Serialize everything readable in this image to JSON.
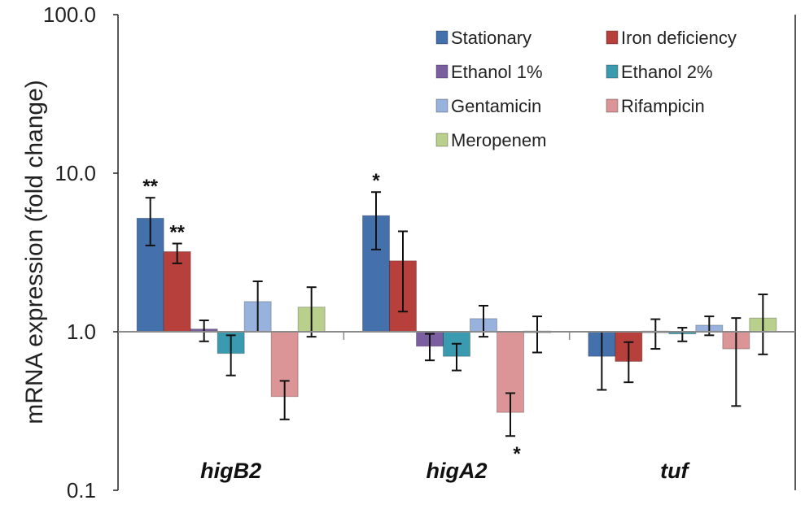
{
  "chart_data": {
    "type": "bar",
    "ylabel": "mRNA expression (fold change)",
    "yscale": "log",
    "ylim": [
      0.1,
      100
    ],
    "yticks": [
      "0.1",
      "1.0",
      "10.0",
      "100.0"
    ],
    "categories": [
      "higB2",
      "higA2",
      "tuf"
    ],
    "legend_position": "top-right",
    "series": [
      {
        "name": "Stationary",
        "color": "#4470ab",
        "values": [
          5.2,
          5.4,
          0.7
        ],
        "err_low": [
          3.5,
          3.3,
          0.43
        ],
        "err_high": [
          7.0,
          7.6,
          1.0
        ]
      },
      {
        "name": "Iron deficiency",
        "color": "#b8403c",
        "values": [
          3.2,
          2.8,
          0.65
        ],
        "err_low": [
          2.7,
          1.34,
          0.48
        ],
        "err_high": [
          3.6,
          4.3,
          0.86
        ]
      },
      {
        "name": "Ethanol 1%",
        "color": "#7b5ea0",
        "values": [
          1.04,
          0.81,
          1.01
        ],
        "err_low": [
          0.87,
          0.66,
          0.78
        ],
        "err_high": [
          1.18,
          0.97,
          1.2
        ]
      },
      {
        "name": "Ethanol 2%",
        "color": "#3a9bb0",
        "values": [
          0.73,
          0.7,
          0.97
        ],
        "err_low": [
          0.53,
          0.57,
          0.87
        ],
        "err_high": [
          0.95,
          0.84,
          1.06
        ]
      },
      {
        "name": "Gentamicin",
        "color": "#97b3dd",
        "values": [
          1.55,
          1.21,
          1.1
        ],
        "err_low": [
          1.0,
          0.93,
          0.95
        ],
        "err_high": [
          2.08,
          1.46,
          1.25
        ]
      },
      {
        "name": "Rifampicin",
        "color": "#db9596",
        "values": [
          0.39,
          0.31,
          0.78
        ],
        "err_low": [
          0.28,
          0.22,
          0.34
        ],
        "err_high": [
          0.49,
          0.41,
          1.22
        ]
      },
      {
        "name": "Meropenem",
        "color": "#b9d08d",
        "values": [
          1.43,
          1.01,
          1.22
        ],
        "err_low": [
          0.93,
          0.74,
          0.72
        ],
        "err_high": [
          1.91,
          1.25,
          1.72
        ]
      }
    ],
    "annotations": [
      {
        "text": "**",
        "category": "higB2",
        "series": "Stationary",
        "position": "above"
      },
      {
        "text": "**",
        "category": "higB2",
        "series": "Iron deficiency",
        "position": "above"
      },
      {
        "text": "*",
        "category": "higA2",
        "series": "Stationary",
        "position": "above"
      },
      {
        "text": "*",
        "category": "higA2",
        "series": "Rifampicin",
        "position": "below"
      }
    ]
  }
}
